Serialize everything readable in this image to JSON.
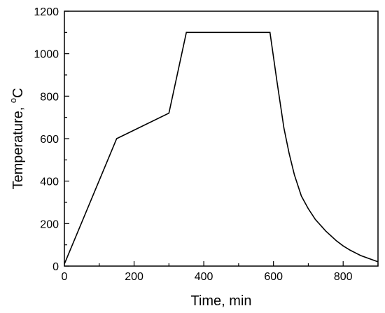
{
  "chart_data": {
    "type": "line",
    "title": "",
    "xlabel": "Time, min",
    "ylabel_main": "Temperature, ",
    "ylabel_sup": "o",
    "ylabel_unit": "C",
    "xlim": [
      0,
      900
    ],
    "ylim": [
      0,
      1200
    ],
    "xticks": [
      0,
      200,
      400,
      600,
      800
    ],
    "yticks": [
      0,
      200,
      400,
      600,
      800,
      1000,
      1200
    ],
    "x_minor_step": 100,
    "y_minor_step": 100,
    "grid": false,
    "legend": "none",
    "line_color": "#000000",
    "series": [
      {
        "x": [
          0,
          150,
          300,
          350,
          590,
          610,
          630,
          645,
          660,
          680,
          700,
          720,
          750,
          780,
          800,
          820,
          850,
          870,
          900
        ],
        "y": [
          10,
          600,
          720,
          1100,
          1100,
          870,
          650,
          530,
          430,
          330,
          270,
          220,
          165,
          120,
          95,
          75,
          50,
          38,
          20
        ]
      }
    ]
  }
}
